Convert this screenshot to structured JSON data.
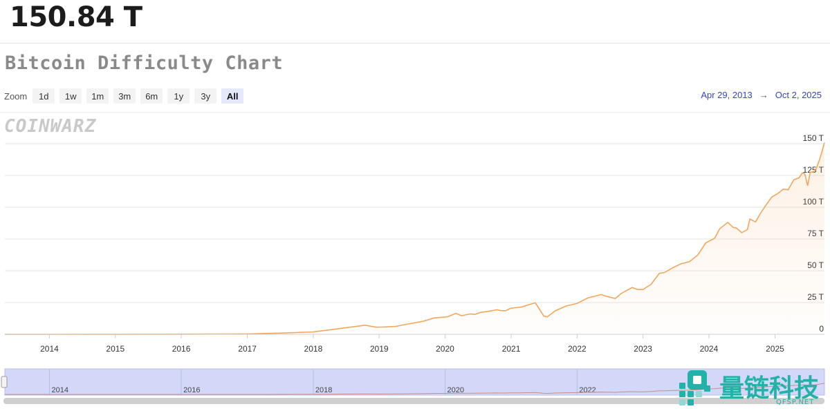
{
  "header": {
    "current_value": "150.84 T"
  },
  "chart_title": "Bitcoin Difficulty Chart",
  "zoom": {
    "label": "Zoom",
    "buttons": [
      "1d",
      "1w",
      "1m",
      "3m",
      "6m",
      "1y",
      "3y",
      "All"
    ],
    "active": "All"
  },
  "range": {
    "from": "Apr 29, 2013",
    "arrow": "→",
    "to": "Oct 2, 2025"
  },
  "watermark": "COINWARZ",
  "navigator": {
    "ticks": [
      "2014",
      "2016",
      "2018",
      "2020",
      "2022"
    ]
  },
  "brand": {
    "name": "量链科技",
    "sub": "QFSP.NET"
  },
  "colors": {
    "line": "#f2a65a",
    "navigator_fill": "#d4d8f8",
    "navigator_line": "#c98a8a",
    "range_link": "#3345c2"
  },
  "chart_data": {
    "type": "area",
    "title": "Bitcoin Difficulty Chart",
    "xlabel": "",
    "ylabel": "",
    "ylim": [
      0,
      150
    ],
    "y_unit": "T",
    "y_ticks": [
      "0",
      "25 T",
      "50 T",
      "75 T",
      "100 T",
      "125 T",
      "150 T"
    ],
    "x_ticks": [
      "2014",
      "2015",
      "2016",
      "2017",
      "2018",
      "2019",
      "2020",
      "2021",
      "2022",
      "2023",
      "2024",
      "2025"
    ],
    "xlim": [
      "2013-04-29",
      "2025-10-02"
    ],
    "grid": true,
    "legend": "none",
    "series": [
      {
        "x": [
          "2013-04-29",
          "2014-01-01",
          "2015-01-01",
          "2016-01-01",
          "2017-01-01",
          "2017-07-01",
          "2018-01-01",
          "2018-04-01",
          "2018-07-01",
          "2018-10-15",
          "2018-12-15",
          "2019-01-15",
          "2019-04-01",
          "2019-06-01",
          "2019-09-01",
          "2019-11-01",
          "2020-01-15",
          "2020-03-01",
          "2020-04-01",
          "2020-05-20",
          "2020-06-15",
          "2020-07-15",
          "2020-08-20",
          "2020-10-15",
          "2020-11-01",
          "2020-12-01",
          "2021-01-01",
          "2021-03-01",
          "2021-04-15",
          "2021-05-15",
          "2021-07-01",
          "2021-07-20",
          "2021-09-01",
          "2021-11-01",
          "2022-01-01",
          "2022-03-01",
          "2022-05-15",
          "2022-06-15",
          "2022-08-01",
          "2022-09-01",
          "2022-11-01",
          "2022-12-01",
          "2023-01-01",
          "2023-02-15",
          "2023-04-01",
          "2023-05-01",
          "2023-06-15",
          "2023-08-01",
          "2023-09-15",
          "2023-11-01",
          "2023-12-15",
          "2024-02-01",
          "2024-03-01",
          "2024-04-15",
          "2024-05-15",
          "2024-06-01",
          "2024-07-01",
          "2024-08-01",
          "2024-08-15",
          "2024-09-15",
          "2024-10-15",
          "2024-11-15",
          "2024-12-15",
          "2025-01-15",
          "2025-02-15",
          "2025-03-15",
          "2025-04-15",
          "2025-05-15",
          "2025-06-01",
          "2025-06-15",
          "2025-07-01",
          "2025-07-15",
          "2025-08-01",
          "2025-08-15",
          "2025-09-01",
          "2025-09-15",
          "2025-10-02"
        ],
        "values": [
          0.01,
          0.001,
          0.04,
          0.1,
          0.3,
          0.9,
          1.9,
          3.5,
          5.2,
          7.2,
          5.6,
          5.7,
          6.2,
          7.9,
          10.2,
          12.9,
          13.8,
          16.5,
          14.6,
          16.1,
          15.7,
          17.3,
          17.9,
          19.3,
          18.7,
          18.6,
          20.6,
          21.5,
          23.6,
          24.8,
          14.4,
          13.7,
          18.4,
          22.3,
          24.3,
          28.6,
          31.3,
          29.8,
          28.2,
          32.0,
          36.8,
          35.4,
          35.2,
          39.4,
          47.9,
          48.7,
          52.4,
          55.6,
          57.1,
          62.5,
          72.0,
          75.5,
          83.1,
          88.1,
          84.0,
          83.7,
          80.0,
          82.4,
          90.7,
          88.4,
          95.7,
          102.3,
          108.1,
          110.6,
          114.2,
          113.8,
          121.5,
          123.2,
          126.9,
          126.4,
          116.9,
          127.6,
          127.6,
          129.4,
          136.0,
          142.3,
          150.84
        ]
      }
    ]
  }
}
